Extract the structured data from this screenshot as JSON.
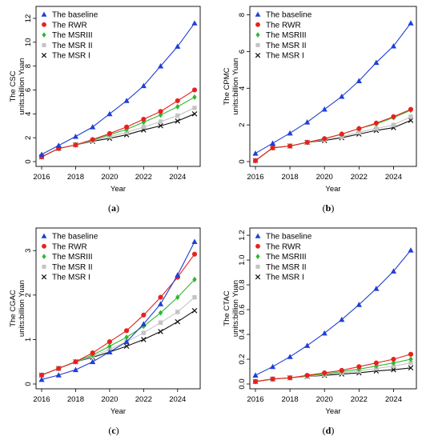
{
  "series_colors": {
    "The baseline": "#1f3fd6",
    "The RWR": "#e8211d",
    "The MSRIII": "#2fb82f",
    "The MSR II": "#c4c4c4",
    "The MSR I": "#111111"
  },
  "chart_data": [
    {
      "type": "line",
      "panel": "(a)",
      "caption_open": "(",
      "caption_letter": "a",
      "caption_close": ")",
      "xlabel": "Year",
      "ylabel": "The CSC",
      "ylabel2": "units:billion Yuan",
      "x": [
        2016,
        2017,
        2018,
        2019,
        2020,
        2021,
        2022,
        2023,
        2024,
        2025
      ],
      "xticks": [
        "2016",
        "2018",
        "2020",
        "2022",
        "2024"
      ],
      "xlim": [
        2016,
        2025
      ],
      "yticks": [
        0,
        2,
        4,
        6,
        8,
        10,
        12
      ],
      "ylim": [
        0,
        12.6
      ],
      "legend_position": "top-left",
      "series": [
        {
          "name": "The baseline",
          "marker": "triangle",
          "values": [
            0.6,
            1.35,
            2.1,
            2.9,
            4.0,
            5.1,
            6.35,
            8.0,
            9.65,
            11.6
          ]
        },
        {
          "name": "The RWR",
          "marker": "circle",
          "values": [
            0.4,
            1.1,
            1.4,
            1.85,
            2.35,
            2.9,
            3.55,
            4.2,
            5.1,
            6.0
          ]
        },
        {
          "name": "The MSRIII",
          "marker": "diamond",
          "values": [
            0.4,
            1.1,
            1.4,
            1.8,
            2.25,
            2.7,
            3.3,
            3.9,
            4.6,
            5.4
          ]
        },
        {
          "name": "The MSR II",
          "marker": "square",
          "values": [
            0.4,
            1.1,
            1.4,
            1.75,
            2.1,
            2.45,
            2.9,
            3.35,
            3.85,
            4.5
          ]
        },
        {
          "name": "The MSR I",
          "marker": "x",
          "values": [
            0.4,
            1.1,
            1.4,
            1.7,
            1.95,
            2.25,
            2.65,
            3.0,
            3.4,
            4.0
          ]
        }
      ]
    },
    {
      "type": "line",
      "panel": "(b)",
      "caption_open": "(",
      "caption_letter": "b",
      "caption_close": ")",
      "xlabel": "Year",
      "ylabel": "The CPMC",
      "ylabel2": "units:billion Yuan",
      "x": [
        2016,
        2017,
        2018,
        2019,
        2020,
        2021,
        2022,
        2023,
        2024,
        2025
      ],
      "xticks": [
        "2016",
        "2018",
        "2020",
        "2022",
        "2024"
      ],
      "xlim": [
        2016,
        2025
      ],
      "yticks": [
        0,
        2,
        4,
        6,
        8
      ],
      "ylim": [
        0,
        8.2
      ],
      "legend_position": "top-left",
      "series": [
        {
          "name": "The baseline",
          "marker": "triangle",
          "values": [
            0.45,
            1.0,
            1.55,
            2.15,
            2.85,
            3.55,
            4.4,
            5.4,
            6.3,
            7.55
          ]
        },
        {
          "name": "The RWR",
          "marker": "circle",
          "values": [
            0.05,
            0.75,
            0.85,
            1.05,
            1.25,
            1.5,
            1.8,
            2.1,
            2.45,
            2.85
          ]
        },
        {
          "name": "The MSRIII",
          "marker": "diamond",
          "values": [
            0.05,
            0.75,
            0.85,
            1.05,
            1.25,
            1.5,
            1.8,
            2.05,
            2.4,
            2.8
          ]
        },
        {
          "name": "The MSR II",
          "marker": "square",
          "values": [
            0.05,
            0.75,
            0.85,
            1.05,
            1.2,
            1.35,
            1.6,
            1.8,
            2.0,
            2.45
          ]
        },
        {
          "name": "The MSR I",
          "marker": "x",
          "values": [
            0.05,
            0.75,
            0.85,
            1.05,
            1.15,
            1.3,
            1.5,
            1.7,
            1.85,
            2.25
          ]
        }
      ]
    },
    {
      "type": "line",
      "panel": "(c)",
      "caption_open": "(",
      "caption_letter": "c",
      "caption_close": ")",
      "xlabel": "Year",
      "ylabel": "The CGAC",
      "ylabel2": "units:billion Yuan",
      "x": [
        2016,
        2017,
        2018,
        2019,
        2020,
        2021,
        2022,
        2023,
        2024,
        2025
      ],
      "xticks": [
        "2016",
        "2018",
        "2020",
        "2022",
        "2024"
      ],
      "xlim": [
        2016,
        2025
      ],
      "yticks": [
        0,
        1,
        2,
        3
      ],
      "ylim": [
        0,
        3.4
      ],
      "legend_position": "top-left",
      "series": [
        {
          "name": "The baseline",
          "marker": "triangle",
          "values": [
            0.1,
            0.2,
            0.32,
            0.5,
            0.72,
            0.95,
            1.35,
            1.8,
            2.45,
            3.2
          ]
        },
        {
          "name": "The RWR",
          "marker": "circle",
          "values": [
            0.2,
            0.35,
            0.5,
            0.7,
            0.95,
            1.2,
            1.55,
            1.95,
            2.4,
            2.92
          ]
        },
        {
          "name": "The MSRIII",
          "marker": "diamond",
          "values": [
            0.2,
            0.35,
            0.5,
            0.65,
            0.85,
            1.05,
            1.3,
            1.6,
            1.95,
            2.35
          ]
        },
        {
          "name": "The MSR II",
          "marker": "square",
          "values": [
            0.2,
            0.35,
            0.5,
            0.62,
            0.78,
            0.95,
            1.15,
            1.38,
            1.62,
            1.95
          ]
        },
        {
          "name": "The MSR I",
          "marker": "x",
          "values": [
            0.2,
            0.35,
            0.5,
            0.6,
            0.72,
            0.85,
            1.0,
            1.18,
            1.4,
            1.65
          ]
        }
      ]
    },
    {
      "type": "line",
      "panel": "(d)",
      "caption_open": "(",
      "caption_letter": "d",
      "caption_close": ")",
      "xlabel": "Year",
      "ylabel": "The CTAC",
      "ylabel2": "units:billion Yuan",
      "x": [
        2016,
        2017,
        2018,
        2019,
        2020,
        2021,
        2022,
        2023,
        2024,
        2025
      ],
      "xticks": [
        "2016",
        "2018",
        "2020",
        "2022",
        "2024"
      ],
      "xlim": [
        2016,
        2025
      ],
      "yticks": [
        "0.0",
        "0.2",
        "0.4",
        "0.6",
        "0.8",
        "1.0",
        "1.2"
      ],
      "ylim": [
        0,
        1.22
      ],
      "legend_position": "top-left",
      "series": [
        {
          "name": "The baseline",
          "marker": "triangle",
          "values": [
            0.07,
            0.14,
            0.22,
            0.31,
            0.41,
            0.52,
            0.64,
            0.77,
            0.91,
            1.08
          ]
        },
        {
          "name": "The RWR",
          "marker": "circle",
          "values": [
            0.02,
            0.04,
            0.05,
            0.07,
            0.09,
            0.11,
            0.14,
            0.17,
            0.2,
            0.24
          ]
        },
        {
          "name": "The MSRIII",
          "marker": "diamond",
          "values": [
            0.02,
            0.04,
            0.05,
            0.065,
            0.08,
            0.1,
            0.12,
            0.145,
            0.17,
            0.2
          ]
        },
        {
          "name": "The MSR II",
          "marker": "square",
          "values": [
            0.02,
            0.04,
            0.05,
            0.06,
            0.075,
            0.09,
            0.105,
            0.125,
            0.145,
            0.17
          ]
        },
        {
          "name": "The MSR I",
          "marker": "x",
          "values": [
            0.02,
            0.04,
            0.05,
            0.06,
            0.07,
            0.08,
            0.09,
            0.105,
            0.115,
            0.13
          ]
        }
      ]
    }
  ]
}
